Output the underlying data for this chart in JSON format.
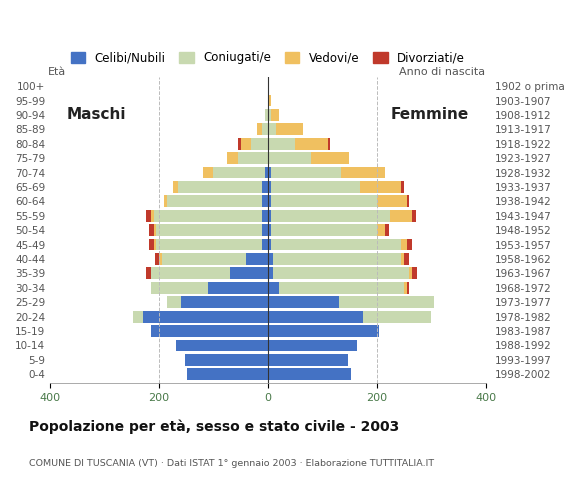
{
  "age_groups": [
    "0-4",
    "5-9",
    "10-14",
    "15-19",
    "20-24",
    "25-29",
    "30-34",
    "35-39",
    "40-44",
    "45-49",
    "50-54",
    "55-59",
    "60-64",
    "65-69",
    "70-74",
    "75-79",
    "80-84",
    "85-89",
    "90-94",
    "95-99",
    "100+"
  ],
  "birth_years": [
    "1998-2002",
    "1993-1997",
    "1988-1992",
    "1983-1987",
    "1978-1982",
    "1973-1977",
    "1968-1972",
    "1963-1967",
    "1958-1962",
    "1953-1957",
    "1948-1952",
    "1943-1947",
    "1938-1942",
    "1933-1937",
    "1928-1932",
    "1923-1927",
    "1918-1922",
    "1913-1917",
    "1908-1912",
    "1903-1907",
    "1902 o prima"
  ],
  "males": {
    "celibe": [
      148,
      152,
      168,
      215,
      230,
      160,
      110,
      70,
      40,
      10,
      10,
      10,
      10,
      10,
      5,
      0,
      0,
      0,
      0,
      0,
      0
    ],
    "coniugato": [
      0,
      0,
      0,
      0,
      18,
      25,
      105,
      145,
      155,
      195,
      195,
      200,
      175,
      155,
      95,
      55,
      30,
      10,
      5,
      0,
      0
    ],
    "vedovo": [
      0,
      0,
      0,
      0,
      0,
      0,
      0,
      0,
      5,
      5,
      5,
      5,
      5,
      10,
      20,
      20,
      20,
      10,
      0,
      0,
      0
    ],
    "divorziato": [
      0,
      0,
      0,
      0,
      0,
      0,
      0,
      8,
      8,
      8,
      8,
      8,
      0,
      0,
      0,
      0,
      5,
      0,
      0,
      0,
      0
    ]
  },
  "females": {
    "nubile": [
      152,
      148,
      163,
      205,
      175,
      130,
      20,
      10,
      10,
      5,
      5,
      5,
      5,
      5,
      5,
      0,
      0,
      0,
      0,
      0,
      0
    ],
    "coniugata": [
      0,
      0,
      0,
      0,
      125,
      175,
      230,
      250,
      235,
      240,
      195,
      220,
      195,
      165,
      130,
      80,
      50,
      15,
      5,
      0,
      0
    ],
    "vedova": [
      0,
      0,
      0,
      0,
      0,
      0,
      5,
      5,
      5,
      10,
      15,
      40,
      55,
      75,
      80,
      70,
      60,
      50,
      15,
      5,
      0
    ],
    "divorziata": [
      0,
      0,
      0,
      0,
      0,
      0,
      5,
      10,
      10,
      10,
      8,
      8,
      5,
      5,
      0,
      0,
      5,
      0,
      0,
      0,
      0
    ]
  },
  "colors": {
    "celibe": "#4472c4",
    "coniugato": "#c8d9b0",
    "vedovo": "#f0c060",
    "divorziato": "#c0392b"
  },
  "xlim": 400,
  "title": "Popolazione per età, sesso e stato civile - 2003",
  "subtitle": "COMUNE DI TUSCANIA (VT) · Dati ISTAT 1° gennaio 2003 · Elaborazione TUTTITALIA.IT",
  "legend_labels": [
    "Celibi/Nubili",
    "Coniugati/e",
    "Vedovi/e",
    "Divorziati/e"
  ],
  "label_eta": "Età",
  "label_anno": "Anno di nascita",
  "label_maschi": "Maschi",
  "label_femmine": "Femmine",
  "bg_color": "#ffffff",
  "grid_color": "#bbbbbb"
}
